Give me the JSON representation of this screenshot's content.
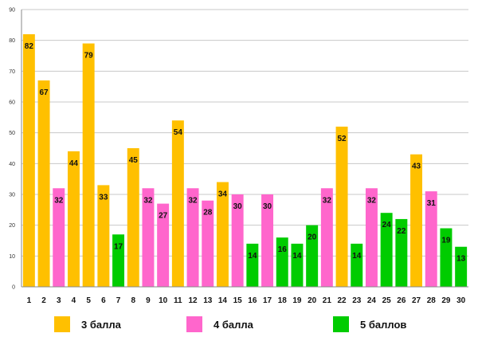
{
  "chart_data": {
    "type": "bar",
    "title": "",
    "xlabel": "",
    "ylabel": "",
    "ylim": [
      0,
      90
    ],
    "yticks": [
      0,
      10,
      20,
      30,
      40,
      50,
      60,
      70,
      80,
      90
    ],
    "grid": true,
    "legend_position": "bottom",
    "categories": [
      "1",
      "2",
      "3",
      "4",
      "5",
      "6",
      "7",
      "8",
      "9",
      "10",
      "11",
      "12",
      "13",
      "14",
      "15",
      "16",
      "17",
      "18",
      "19",
      "20",
      "21",
      "22",
      "23",
      "24",
      "25",
      "26",
      "27",
      "28",
      "29",
      "30"
    ],
    "values": [
      82,
      67,
      32,
      44,
      79,
      33,
      17,
      45,
      32,
      27,
      54,
      32,
      28,
      34,
      30,
      14,
      30,
      16,
      14,
      20,
      32,
      52,
      14,
      32,
      24,
      22,
      43,
      31,
      19,
      13
    ],
    "groups": [
      0,
      0,
      1,
      0,
      0,
      0,
      2,
      0,
      1,
      1,
      0,
      1,
      1,
      0,
      1,
      2,
      1,
      2,
      2,
      2,
      1,
      0,
      2,
      1,
      2,
      2,
      0,
      1,
      2,
      2
    ],
    "legend": [
      {
        "label": "3 балла",
        "color": "#FFC000"
      },
      {
        "label": "4 балла",
        "color": "#FF66CC"
      },
      {
        "label": "5 баллов",
        "color": "#00CC00"
      }
    ]
  }
}
